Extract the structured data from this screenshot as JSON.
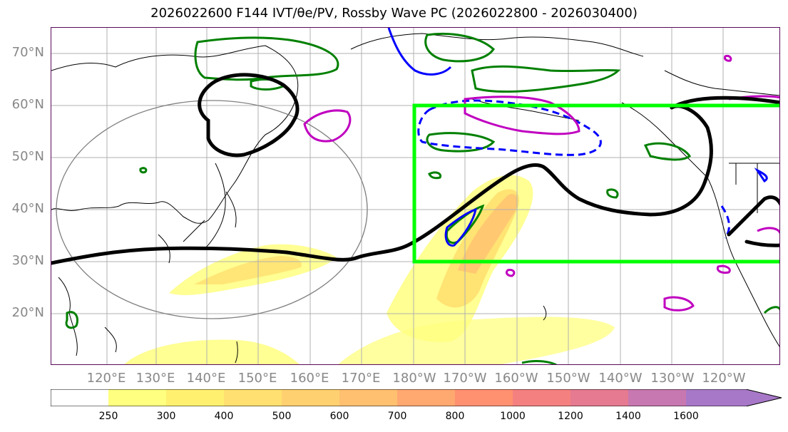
{
  "title": "2026022600 F144 IVT/θe/PV, Rossby Wave PC (2026022800 - 2026030400)",
  "latitude_labels": [
    "70°N",
    "60°N",
    "50°N",
    "40°N",
    "30°N",
    "20°N"
  ],
  "longitude_labels": [
    "120°E",
    "130°E",
    "140°E",
    "150°E",
    "160°E",
    "170°E",
    "180°W",
    "170°W",
    "160°W",
    "150°W",
    "140°W",
    "130°W",
    "120°W"
  ],
  "colorbar": {
    "ticks": [
      "250",
      "300",
      "400",
      "500",
      "600",
      "700",
      "800",
      "1000",
      "1200",
      "1400",
      "1600"
    ],
    "colors": [
      "#ffff80",
      "#fff070",
      "#ffe070",
      "#ffd070",
      "#ffc070",
      "#ffa870",
      "#ff9070",
      "#f58080",
      "#e57a90",
      "#c878b0",
      "#a878c8"
    ]
  },
  "colors": {
    "jet_contour": "#000000",
    "box": "#00ff00",
    "green_contour": "#008000",
    "blue_contour": "#0000ff",
    "magenta_contour": "#c000c0",
    "circle": "#808080"
  }
}
